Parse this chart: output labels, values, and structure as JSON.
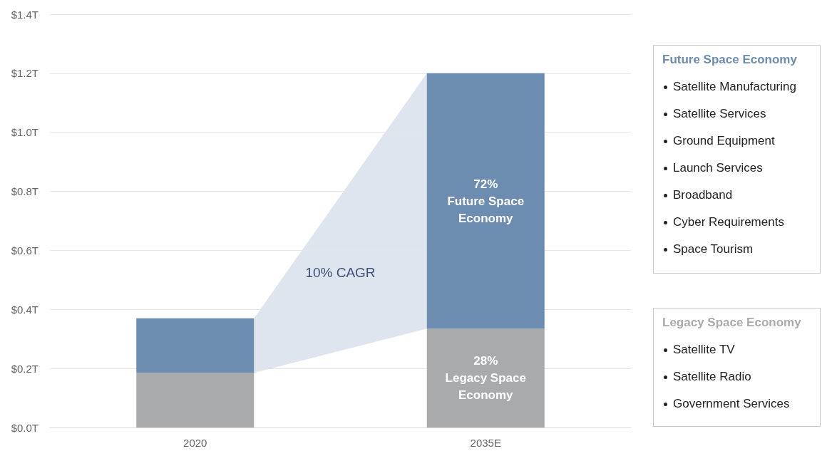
{
  "chart_data": [
    {
      "type": "bar",
      "categories": [
        "2020",
        "2035E"
      ],
      "stacked": true,
      "ylim": [
        0,
        1.4
      ],
      "yticks": [
        {
          "value": 0,
          "label": "$0.0T"
        },
        {
          "value": 0.2,
          "label": "$0.2T"
        },
        {
          "value": 0.4,
          "label": "$0.4T"
        },
        {
          "value": 0.6,
          "label": "$0.6T"
        },
        {
          "value": 0.8,
          "label": "$0.8T"
        },
        {
          "value": 1.0,
          "label": "$1.0T"
        },
        {
          "value": 1.2,
          "label": "$1.2T"
        },
        {
          "value": 1.4,
          "label": "$1.4T"
        }
      ],
      "grid": "y",
      "series": [
        {
          "color": "#a9aaac",
          "values": [
            0.185,
            0.335
          ]
        },
        {
          "color": "#6c8cb0",
          "values": [
            0.185,
            0.865
          ]
        }
      ],
      "annotations": [
        "10% CAGR",
        "28%\nLegacy Space\nEconomy",
        "72%\nFuture Space\nEconomy"
      ]
    },
    {
      "type": "other",
      "title": "Future Space Economy",
      "annotations": [
        "Satellite Manufacturing",
        "Satellite Services",
        "Ground Equipment",
        "Launch Services",
        "Broadband",
        "Cyber Requirements",
        "Space Tourism"
      ]
    },
    {
      "type": "other",
      "title": "Legacy Space Economy",
      "annotations": [
        "Satellite TV",
        "Satellite Radio",
        "Government Services"
      ]
    }
  ]
}
